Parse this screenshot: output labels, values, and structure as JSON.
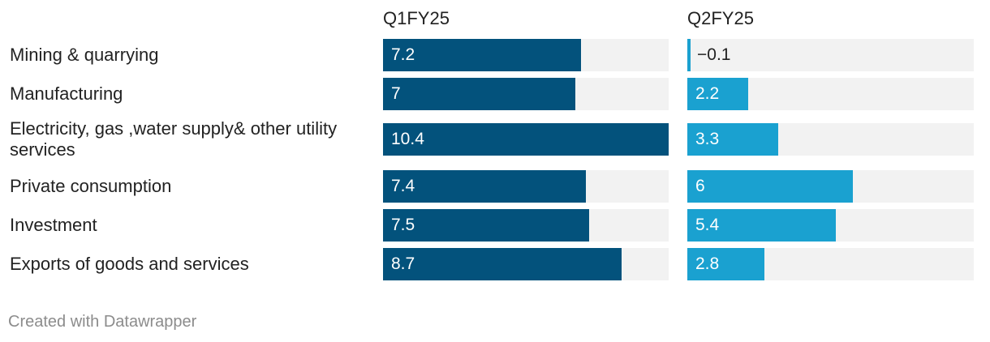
{
  "chart_data": {
    "type": "bar",
    "categories": [
      "Mining & quarrying",
      "Manufacturing",
      "Electricity, gas ,water supply& other utility services",
      "Private consumption",
      "Investment",
      "Exports of goods and services"
    ],
    "series": [
      {
        "name": "Q1FY25",
        "values": [
          7.2,
          7,
          10.4,
          7.4,
          7.5,
          8.7
        ],
        "value_labels": [
          "7.2",
          "7",
          "10.4",
          "7.4",
          "7.5",
          "8.7"
        ],
        "color": "#03527c"
      },
      {
        "name": "Q2FY25",
        "values": [
          -0.1,
          2.2,
          3.3,
          6,
          5.4,
          2.8
        ],
        "value_labels": [
          "−0.1",
          "2.2",
          "3.3",
          "6",
          "5.4",
          "2.8"
        ],
        "color": "#1aa1d0"
      }
    ],
    "xlim": [
      0,
      10.4
    ],
    "background_color": "#f2f2f2",
    "label_color_inside": "#ffffff",
    "label_color_outside": "#222222",
    "grid": false,
    "legend": "none"
  },
  "footer": {
    "credit": "Created with Datawrapper"
  }
}
